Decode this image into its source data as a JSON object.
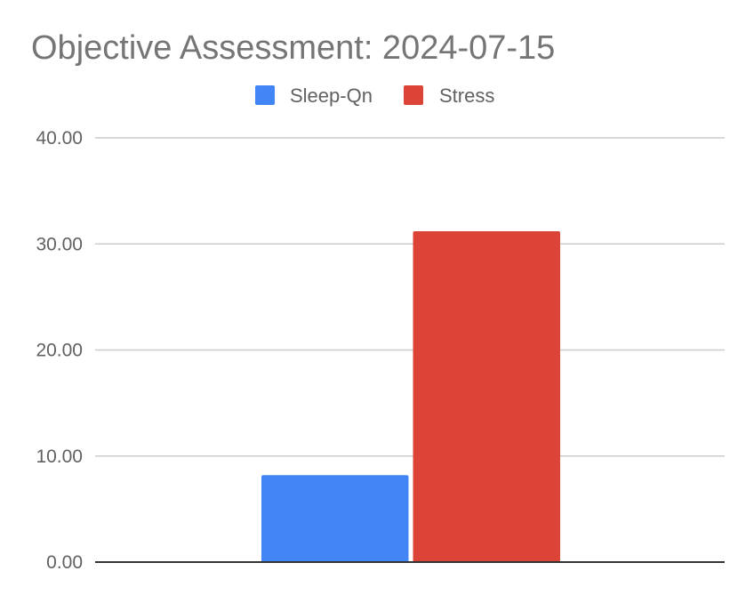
{
  "chart_data": {
    "type": "bar",
    "title": "Objective Assessment: 2024-07-15",
    "categories": [
      ""
    ],
    "series": [
      {
        "name": "Sleep-Qn",
        "color": "#4285F4",
        "values": [
          8.2
        ]
      },
      {
        "name": "Stress",
        "color": "#DB4437",
        "values": [
          31.2
        ]
      }
    ],
    "ylim": [
      0,
      40
    ],
    "yticks": [
      "0.00",
      "10.00",
      "20.00",
      "30.00",
      "40.00"
    ],
    "grid": true,
    "legend_position": "top"
  }
}
